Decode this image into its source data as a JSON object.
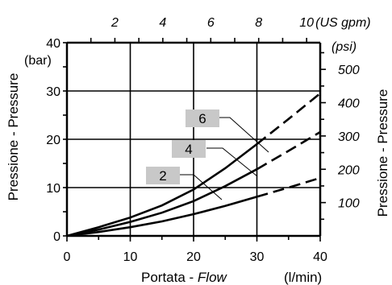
{
  "chart_data": {
    "type": "line",
    "xlabel": "Portata - ",
    "xlabel_italic": "Flow",
    "x_unit": "(l/min)",
    "ylabel": "Pressione - Pressure",
    "y_unit": "(bar)",
    "y2label": "Pressione - Pressure",
    "y2_unit": "(psi)",
    "x2_unit": "(US gpm)",
    "xlim": [
      0,
      40
    ],
    "ylim": [
      0,
      40
    ],
    "x_ticks": [
      0,
      10,
      20,
      30,
      40
    ],
    "y_ticks": [
      0,
      10,
      20,
      30,
      40
    ],
    "x2_ticks": [
      "2",
      "4",
      "6",
      "8",
      "10"
    ],
    "y2_ticks": [
      "100",
      "200",
      "300",
      "400",
      "500"
    ],
    "grid": true,
    "series": [
      {
        "name": "2",
        "points": [
          [
            0,
            0
          ],
          [
            5,
            0.8
          ],
          [
            10,
            1.8
          ],
          [
            15,
            3.0
          ],
          [
            20,
            4.5
          ],
          [
            25,
            6.2
          ],
          [
            30,
            8.1
          ],
          [
            35,
            10.0
          ],
          [
            40,
            12.0
          ]
        ],
        "solid_until": 30
      },
      {
        "name": "4",
        "points": [
          [
            0,
            0
          ],
          [
            5,
            1.3
          ],
          [
            10,
            2.9
          ],
          [
            15,
            4.8
          ],
          [
            20,
            7.2
          ],
          [
            25,
            10.3
          ],
          [
            30,
            13.8
          ],
          [
            35,
            17.6
          ],
          [
            40,
            21.5
          ]
        ],
        "solid_until": 30
      },
      {
        "name": "6",
        "points": [
          [
            0,
            0
          ],
          [
            5,
            1.8
          ],
          [
            10,
            3.8
          ],
          [
            15,
            6.3
          ],
          [
            20,
            9.6
          ],
          [
            25,
            14.0
          ],
          [
            30,
            19.0
          ],
          [
            35,
            24.2
          ],
          [
            40,
            29.5
          ]
        ],
        "solid_until": 30
      }
    ]
  }
}
